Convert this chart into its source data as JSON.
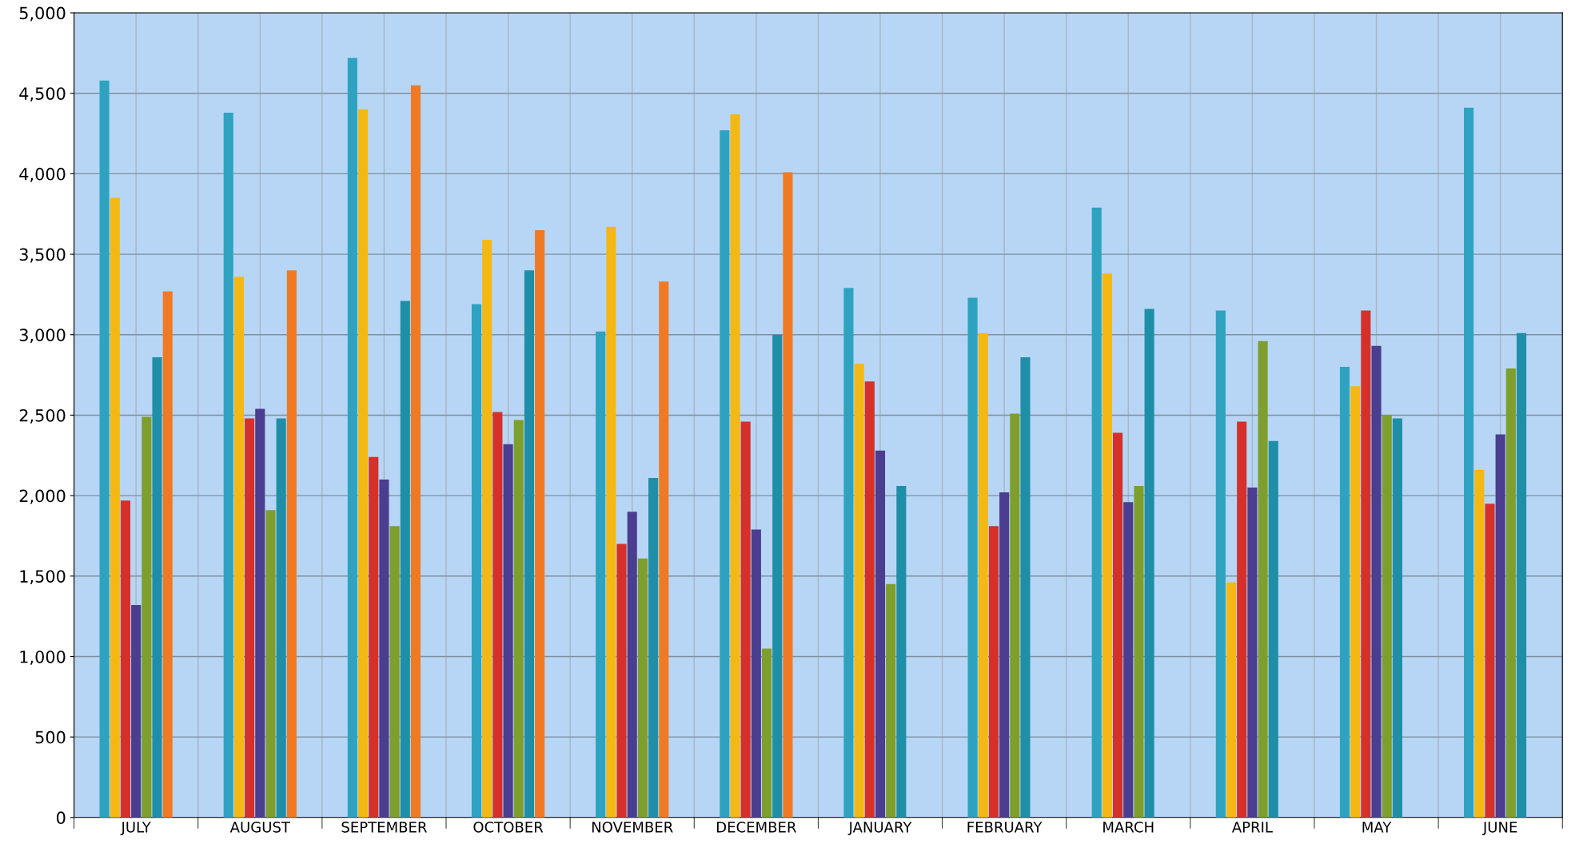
{
  "chart_data": {
    "type": "bar",
    "categories": [
      "JULY",
      "AUGUST",
      "SEPTEMBER",
      "OCTOBER",
      "NOVEMBER",
      "DECEMBER",
      "JANUARY",
      "FEBRUARY",
      "MARCH",
      "APRIL",
      "MAY",
      "JUNE"
    ],
    "series": [
      {
        "color": "#2ea3c0",
        "values": [
          4580,
          4380,
          4720,
          3190,
          3020,
          4270,
          3290,
          3230,
          3790,
          3150,
          2800,
          4410
        ]
      },
      {
        "color": "#f3b814",
        "values": [
          3850,
          3360,
          4400,
          3590,
          3670,
          4370,
          2820,
          3010,
          3380,
          1460,
          2680,
          2160
        ]
      },
      {
        "color": "#d6302a",
        "values": [
          1970,
          2480,
          2240,
          2520,
          1700,
          2460,
          2710,
          1810,
          2390,
          2460,
          3150,
          1950
        ]
      },
      {
        "color": "#4b3d8f",
        "values": [
          1320,
          2540,
          2100,
          2320,
          1900,
          1790,
          2280,
          2020,
          1960,
          2050,
          2930,
          2380
        ]
      },
      {
        "color": "#7e9e2e",
        "values": [
          2490,
          1910,
          1810,
          2470,
          1610,
          1050,
          1450,
          2510,
          2060,
          2960,
          2500,
          2790
        ]
      },
      {
        "color": "#1f8fa8",
        "values": [
          2860,
          2480,
          3210,
          3400,
          2110,
          3000,
          2060,
          2860,
          3160,
          2340,
          2480,
          3010
        ]
      },
      {
        "color": "#f07a24",
        "values": [
          3270,
          3400,
          4550,
          3650,
          3330,
          4010,
          null,
          null,
          null,
          null,
          null,
          null
        ]
      }
    ],
    "ylim": [
      0,
      5000
    ],
    "yticks": [
      0,
      500,
      {
        "value": 1000,
        "label": "1,000"
      },
      {
        "value": 1500,
        "label": "1,500"
      },
      {
        "value": 2000,
        "label": "2,000"
      },
      {
        "value": 2500,
        "label": "2,500"
      },
      {
        "value": 3000,
        "label": "3,000"
      },
      {
        "value": 3500,
        "label": "3,500"
      },
      {
        "value": 4000,
        "label": "4,000"
      },
      {
        "value": 4500,
        "label": "4,500"
      },
      {
        "value": 5000,
        "label": "5,000"
      }
    ],
    "grid": true
  }
}
